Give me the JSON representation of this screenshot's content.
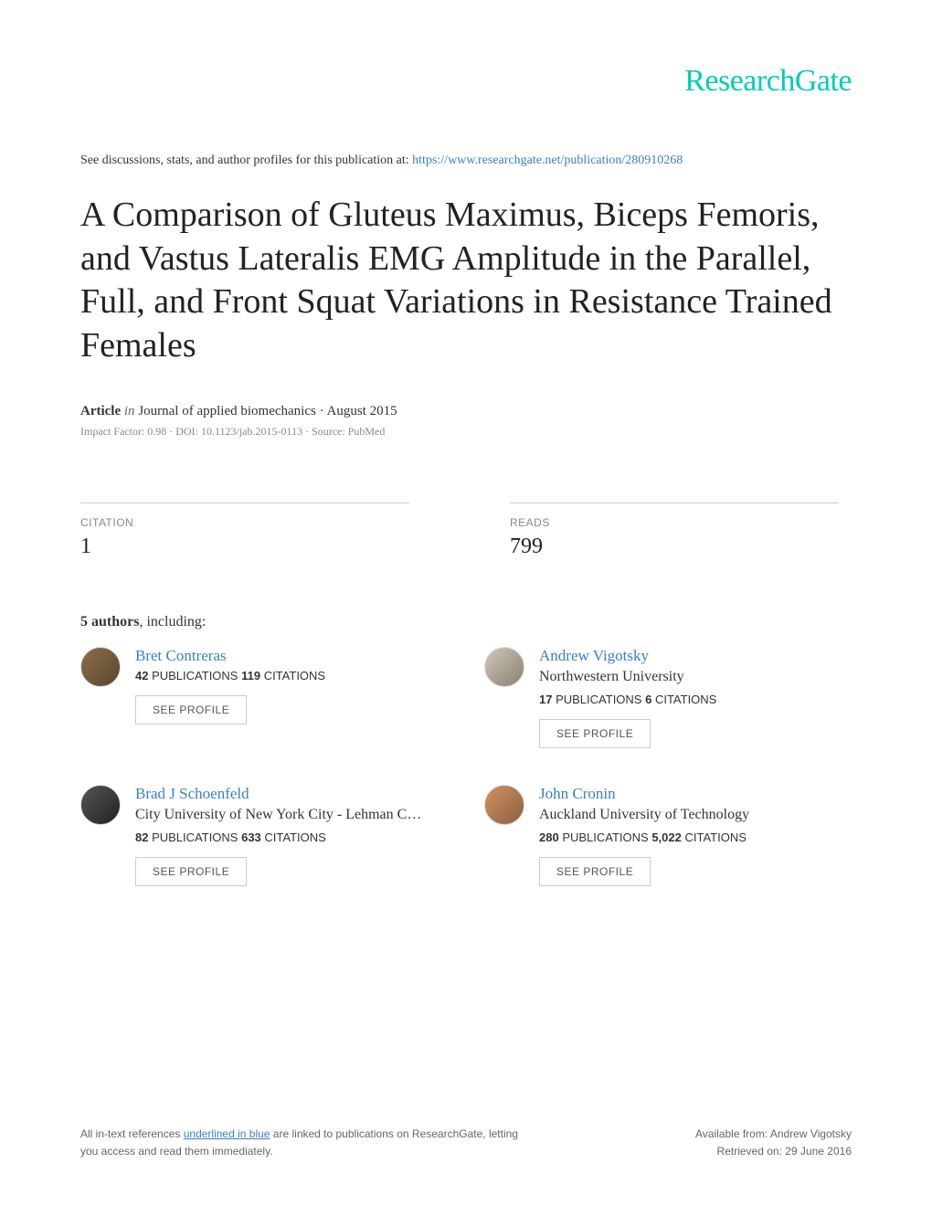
{
  "logo": "ResearchGate",
  "discussion_prefix": "See discussions, stats, and author profiles for this publication at: ",
  "discussion_link": "https://www.researchgate.net/publication/280910268",
  "title": "A Comparison of Gluteus Maximus, Biceps Femoris, and Vastus Lateralis EMG Amplitude in the Parallel, Full, and Front Squat Variations in Resistance Trained Females",
  "article_label": "Article",
  "article_in": "in",
  "article_journal": "  Journal of applied biomechanics · August 2015",
  "impact_line": "Impact Factor: 0.98 · DOI: 10.1123/jab.2015-0113 · Source: PubMed",
  "stats": {
    "citation_label": "CITATION",
    "citation_value": "1",
    "reads_label": "READS",
    "reads_value": "799"
  },
  "authors_heading_bold": "5 authors",
  "authors_heading_rest": ", including:",
  "authors": [
    {
      "name": "Bret Contreras",
      "affiliation": "",
      "pubs": "42",
      "cites": "119",
      "avatar_class": "a1"
    },
    {
      "name": "Andrew Vigotsky",
      "affiliation": "Northwestern University",
      "pubs": "17",
      "cites": "6",
      "avatar_class": "a2"
    },
    {
      "name": "Brad J Schoenfeld",
      "affiliation": "City University of New York City - Lehman Col…",
      "pubs": "82",
      "cites": "633",
      "avatar_class": "a3"
    },
    {
      "name": "John Cronin",
      "affiliation": "Auckland University of Technology",
      "pubs": "280",
      "cites": "5,022",
      "avatar_class": "a4"
    }
  ],
  "pubs_word": " PUBLICATIONS   ",
  "cites_word": " CITATIONS",
  "see_profile": "SEE PROFILE",
  "footer": {
    "left_pre": "All in-text references ",
    "left_blue": "underlined in blue",
    "left_post": " are linked to publications on ResearchGate, letting you access and read them immediately.",
    "right_line1": "Available from: Andrew Vigotsky",
    "right_line2": "Retrieved on: 29 June 2016"
  },
  "colors": {
    "brand": "#00ccbb",
    "link": "#3b7fc4",
    "text": "#333",
    "muted": "#888",
    "border": "#ccc"
  }
}
